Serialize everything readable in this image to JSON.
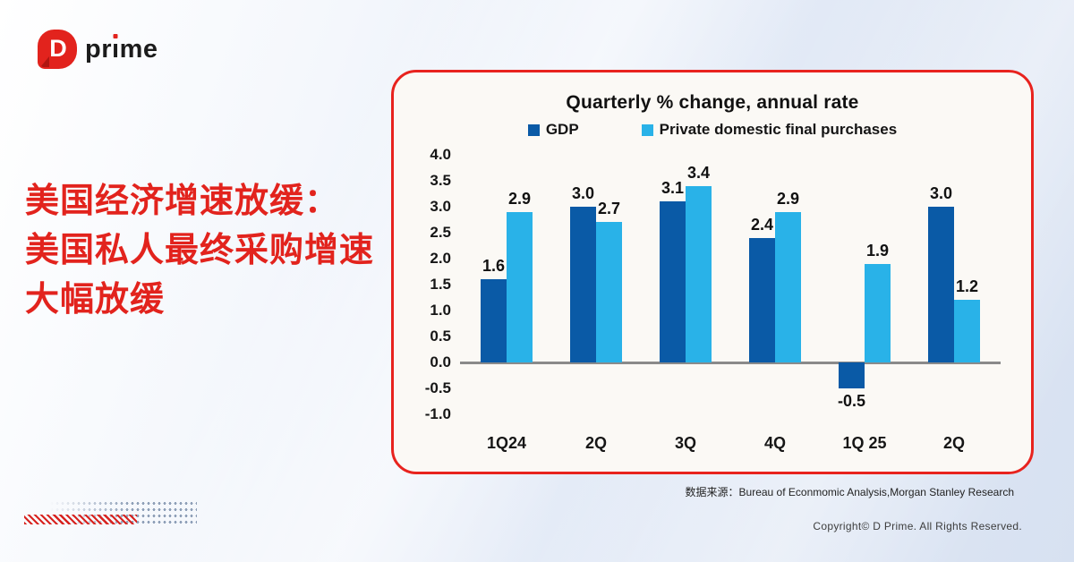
{
  "logo": {
    "mark_letter": "D",
    "brand_part1": "pr",
    "brand_dotless_i": "ı",
    "brand_part2": "me"
  },
  "headline": {
    "line1": "美国经济增速放缓：",
    "line2": "美国私人最终采购增速",
    "line3": "大幅放缓"
  },
  "chart_data": {
    "type": "bar",
    "title": "Quarterly % change, annual rate",
    "categories": [
      "1Q24",
      "2Q",
      "3Q",
      "4Q",
      "1Q 25",
      "2Q"
    ],
    "series": [
      {
        "name": "GDP",
        "color": "#0a5aa6",
        "values": [
          1.6,
          3.0,
          3.1,
          2.4,
          -0.5,
          3.0
        ]
      },
      {
        "name": "Private domestic final purchases",
        "color": "#29b2e8",
        "values": [
          2.9,
          2.7,
          3.4,
          2.9,
          1.9,
          1.2
        ]
      }
    ],
    "ylim": [
      -1.0,
      4.0
    ],
    "ytick_step": 0.5,
    "grid": false,
    "legend_position": "top",
    "xlabel": "",
    "ylabel": ""
  },
  "footer": {
    "source_label": "数据来源：",
    "source_text": "Bureau of Econmomic Analysis,Morgan Stanley Research",
    "copyright": "Copyright© D Prime. All Rights Reserved."
  },
  "colors": {
    "accent_red": "#e2231d",
    "dark_blue": "#0a5aa6",
    "light_blue": "#29b2e8",
    "zero_line_gray": "#8a8a8a"
  }
}
